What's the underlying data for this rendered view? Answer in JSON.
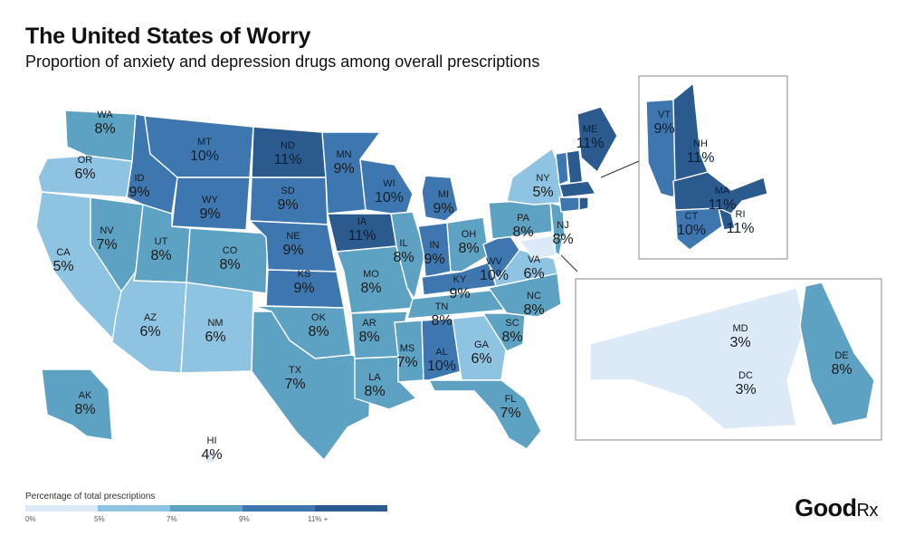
{
  "header": {
    "title": "The United States of Worry",
    "subtitle": "Proportion of anxiety and depression drugs among overall prescriptions"
  },
  "colors": {
    "bin_0_5": "#dce9f6",
    "bin_5_7": "#8fc3e2",
    "bin_7_9": "#5ea2c3",
    "bin_9_11": "#3e77b0",
    "bin_11_plus": "#2b5a8e"
  },
  "legend": {
    "title": "Percentage of total prescriptions",
    "ticks": [
      "0%",
      "5%",
      "7%",
      "9%",
      "11% +"
    ]
  },
  "brand": {
    "name": "Good",
    "mark": "Rx"
  },
  "states": {
    "WA": "8%",
    "OR": "6%",
    "CA": "5%",
    "NV": "7%",
    "ID": "9%",
    "MT": "10%",
    "WY": "9%",
    "UT": "8%",
    "AZ": "6%",
    "NM": "6%",
    "CO": "8%",
    "ND": "11%",
    "SD": "9%",
    "NE": "9%",
    "KS": "9%",
    "OK": "8%",
    "TX": "7%",
    "MN": "9%",
    "IA": "11%",
    "MO": "8%",
    "AR": "8%",
    "LA": "8%",
    "WI": "10%",
    "IL": "8%",
    "MI": "9%",
    "IN": "9%",
    "OH": "8%",
    "KY": "9%",
    "TN": "8%",
    "MS": "7%",
    "AL": "10%",
    "GA": "6%",
    "FL": "7%",
    "SC": "8%",
    "NC": "8%",
    "VA": "6%",
    "WV": "10%",
    "PA": "8%",
    "NY": "5%",
    "NJ": "8%",
    "ME": "11%",
    "AK": "8%",
    "HI": "4%"
  },
  "inset_ne": {
    "VT": "9%",
    "NH": "11%",
    "MA": "11%",
    "CT": "10%",
    "RI": "11%"
  },
  "inset_md": {
    "MD": "3%",
    "DC": "3%",
    "DE": "8%"
  }
}
